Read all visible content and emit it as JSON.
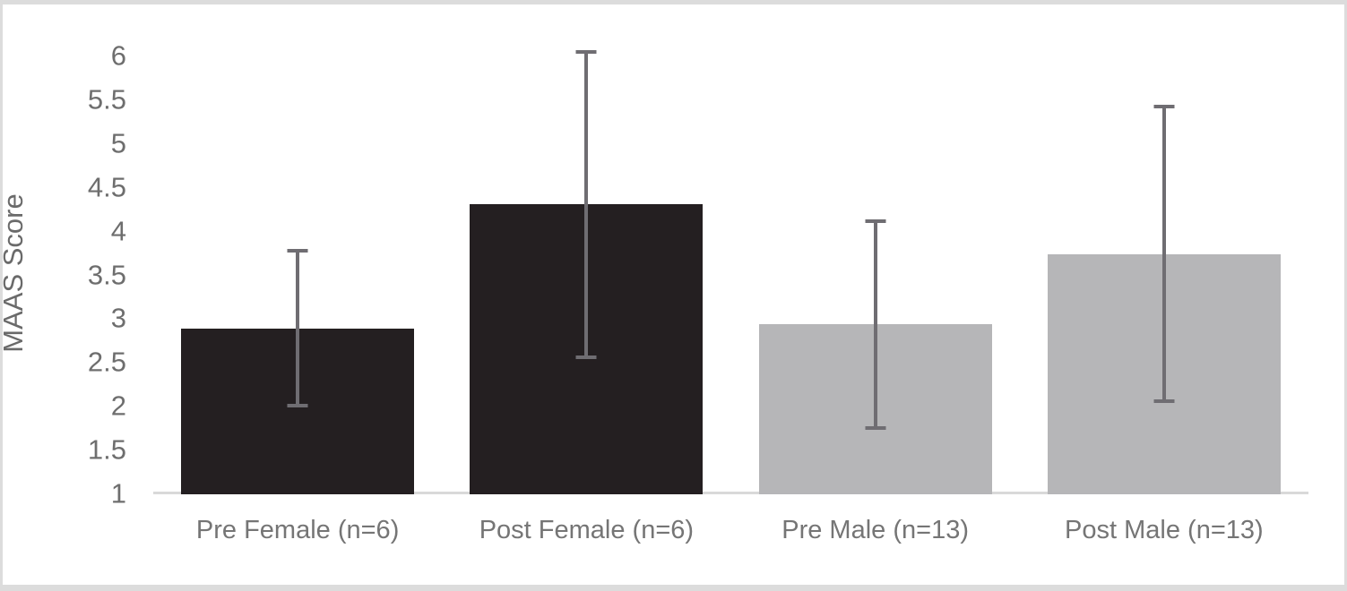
{
  "chart_data": {
    "type": "bar",
    "title": "",
    "xlabel": "",
    "ylabel": "MAAS Score",
    "ylim": [
      1,
      6
    ],
    "grid": false,
    "legend": "none",
    "y_ticks": [
      "6",
      "5.5",
      "5",
      "4.5",
      "4",
      "3.5",
      "3",
      "2.5",
      "2",
      "1.5",
      "1"
    ],
    "categories": [
      "Pre Female (n=6)",
      "Post Female (n=6)",
      "Pre Male (n=13)",
      "Post Male (n=13)"
    ],
    "values": [
      2.88,
      4.3,
      2.93,
      3.73
    ],
    "error_bars": [
      {
        "low": 2.0,
        "high": 3.77
      },
      {
        "low": 2.55,
        "high": 6.04
      },
      {
        "low": 1.75,
        "high": 4.11
      },
      {
        "low": 2.05,
        "high": 5.42
      }
    ],
    "bar_colors": [
      "#241f21",
      "#241f21",
      "#b6b6b8",
      "#b6b6b8"
    ],
    "error_bar_color": "#6f6d72",
    "axis_line_color": "#d9d9d9",
    "tick_label_color": "#6e6e6e",
    "category_label_color": "#757575",
    "axis_title_color": "#6a6a6a",
    "frame_border_color": "#dcdcdc",
    "background_color": "#ffffff"
  }
}
